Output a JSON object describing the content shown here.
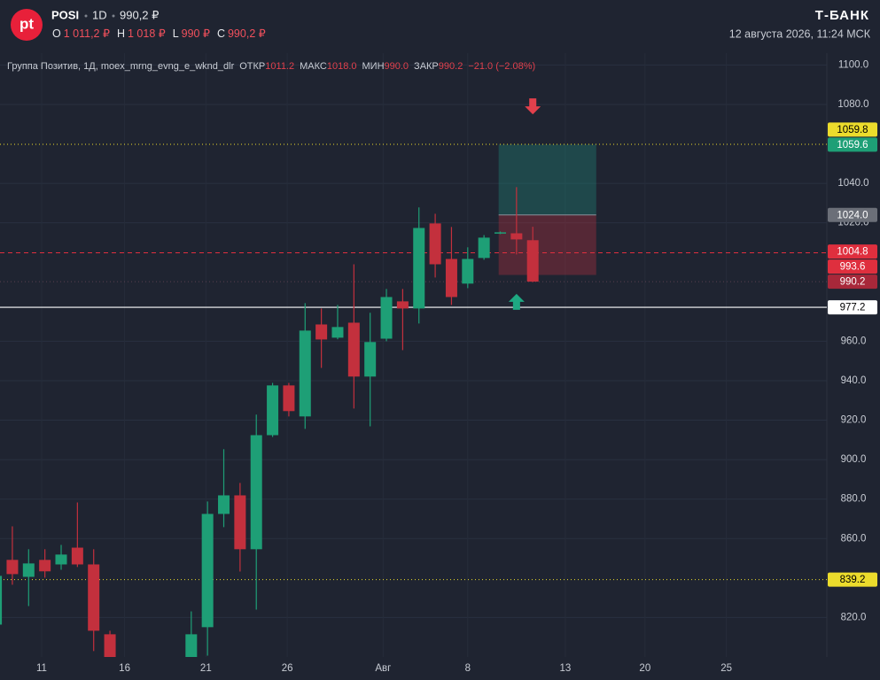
{
  "header": {
    "logo": "pt",
    "ticker": "POSI",
    "interval": "1D",
    "price": "990,2 ₽",
    "ohlc": [
      {
        "label": "O",
        "value": "1 011,2 ₽"
      },
      {
        "label": "H",
        "value": "1 018 ₽"
      },
      {
        "label": "L",
        "value": "990 ₽"
      },
      {
        "label": "C",
        "value": "990,2 ₽"
      }
    ],
    "brand": "Т-БАНК",
    "datetime": "12 августа 2026, 11:24 МСК"
  },
  "legend": {
    "name": "Группа Позитив, 1Д, moex_mrng_evng_e_wknd_dlr",
    "fields": [
      {
        "label": "ОТКР",
        "value": "1011.2"
      },
      {
        "label": "МАКС",
        "value": "1018.0"
      },
      {
        "label": "МИН",
        "value": "990.0"
      },
      {
        "label": "ЗАКР",
        "value": "990.2"
      }
    ],
    "change": "−21.0 (−2.08%)"
  },
  "chart_data": {
    "type": "candlestick",
    "up_color": "#1e9f76",
    "down_color": "#c3303d",
    "x": [
      -1,
      0,
      1,
      2,
      3,
      4,
      5,
      6,
      11,
      12,
      13,
      14,
      15,
      16,
      17,
      18,
      19,
      20,
      21,
      22,
      23,
      24,
      25,
      26,
      27,
      28,
      29,
      30,
      31,
      32
    ],
    "open": [
      816.4,
      849.2,
      840.6,
      849.2,
      846.9,
      855.4,
      846.9,
      811.5,
      799,
      815.1,
      872.5,
      881.9,
      854.6,
      912.4,
      937.6,
      921.9,
      968.5,
      961.8,
      969.4,
      942.1,
      961.3,
      980.2,
      976.6,
      1019.7,
      1001.7,
      989.2,
      1002.2,
      1014.9,
      1014.7,
      1011.2
    ],
    "high": [
      849.2,
      866.2,
      854.6,
      854.6,
      856.8,
      878.3,
      854.6,
      813.3,
      823.1,
      878.8,
      905.3,
      888.2,
      922.8,
      938.9,
      938.9,
      979.3,
      976.6,
      978.4,
      999.0,
      974.4,
      986.5,
      986.5,
      1027.8,
      1024.6,
      1017.9,
      1007.6,
      1013.8,
      1015.6,
      1038.1,
      1018.0
    ],
    "low": [
      809.7,
      836.6,
      825.8,
      840.2,
      844.2,
      845.6,
      803.0,
      795,
      797,
      800.7,
      865.8,
      843.3,
      824.0,
      911.5,
      921.9,
      915.6,
      946.5,
      961.0,
      925.9,
      916.9,
      960.0,
      955.5,
      969.0,
      992.3,
      978.4,
      986.9,
      1001.3,
      1014.3,
      1004.0,
      990.0
    ],
    "close": [
      841.1,
      842.0,
      847.4,
      843.4,
      851.9,
      846.9,
      813.3,
      799,
      811.5,
      872.5,
      881.9,
      854.6,
      912.4,
      937.6,
      924.6,
      965.4,
      960.9,
      967.2,
      942.1,
      959.6,
      982.4,
      976.6,
      1017.4,
      999.0,
      982.4,
      1001.7,
      1012.5,
      1015.2,
      1011.6,
      990.2
    ],
    "xlim": [
      -0.76,
      50.08
    ],
    "xticks": [
      {
        "value": 1.8,
        "label": "11"
      },
      {
        "value": 6.9,
        "label": "16"
      },
      {
        "value": 11.9,
        "label": "21"
      },
      {
        "value": 16.9,
        "label": "26"
      },
      {
        "value": 22.8,
        "label": "Авг"
      },
      {
        "value": 28,
        "label": "8"
      },
      {
        "value": 34,
        "label": "13"
      },
      {
        "value": 38.9,
        "label": "20"
      },
      {
        "value": 43.9,
        "label": "25"
      }
    ],
    "ylim": [
      800,
      1106
    ],
    "yticks": [
      {
        "value": 820,
        "label": "820.0"
      },
      {
        "value": 860,
        "label": "860.0"
      },
      {
        "value": 880,
        "label": "880.0"
      },
      {
        "value": 900,
        "label": "900.0"
      },
      {
        "value": 920,
        "label": "920.0"
      },
      {
        "value": 940,
        "label": "940.0"
      },
      {
        "value": 960,
        "label": "960.0"
      },
      {
        "value": 1020,
        "label": "1020.0"
      },
      {
        "value": 1040,
        "label": "1040.0"
      },
      {
        "value": 1080,
        "label": "1080.0"
      },
      {
        "value": 1100,
        "label": "1100.0"
      }
    ],
    "grid": true,
    "position": {
      "x_start": 29.9,
      "x_end": 35.9,
      "target": 1059.6,
      "entry": 1024.0,
      "stop": 993.6
    },
    "signals": [
      {
        "type": "sell",
        "x": 32,
        "y": 1079
      },
      {
        "type": "buy",
        "x": 31,
        "y": 980
      }
    ],
    "price_lines": [
      {
        "value": 1059.8,
        "label": "1059.8",
        "color": "#ecdc2c",
        "text_color": "#000000",
        "style": "dotted"
      },
      {
        "value": 1059.6,
        "label": "1059.6",
        "color": "#1e9f76",
        "text_color": "#ffffff",
        "style": "none"
      },
      {
        "value": 1024.0,
        "label": "1024.0",
        "color": "#6b6f78",
        "text_color": "#ffffff",
        "style": "none"
      },
      {
        "value": 1004.8,
        "label": "1004.8",
        "color": "#df2f3e",
        "text_color": "#ffffff",
        "style": "dashed"
      },
      {
        "value": 993.6,
        "label": "993.6",
        "color": "#df2f3e",
        "text_color": "#ffffff",
        "style": "none"
      },
      {
        "value": 990.2,
        "label": "990.2",
        "color": "#a8283a",
        "text_color": "#ffffff",
        "style": "dotted"
      },
      {
        "value": 977.2,
        "label": "977.2",
        "color": "#ffffff",
        "text_color": "#000000",
        "style": "solid"
      },
      {
        "value": 839.2,
        "label": "839.2",
        "color": "#ecdc2c",
        "text_color": "#000000",
        "style": "dotted"
      }
    ]
  }
}
